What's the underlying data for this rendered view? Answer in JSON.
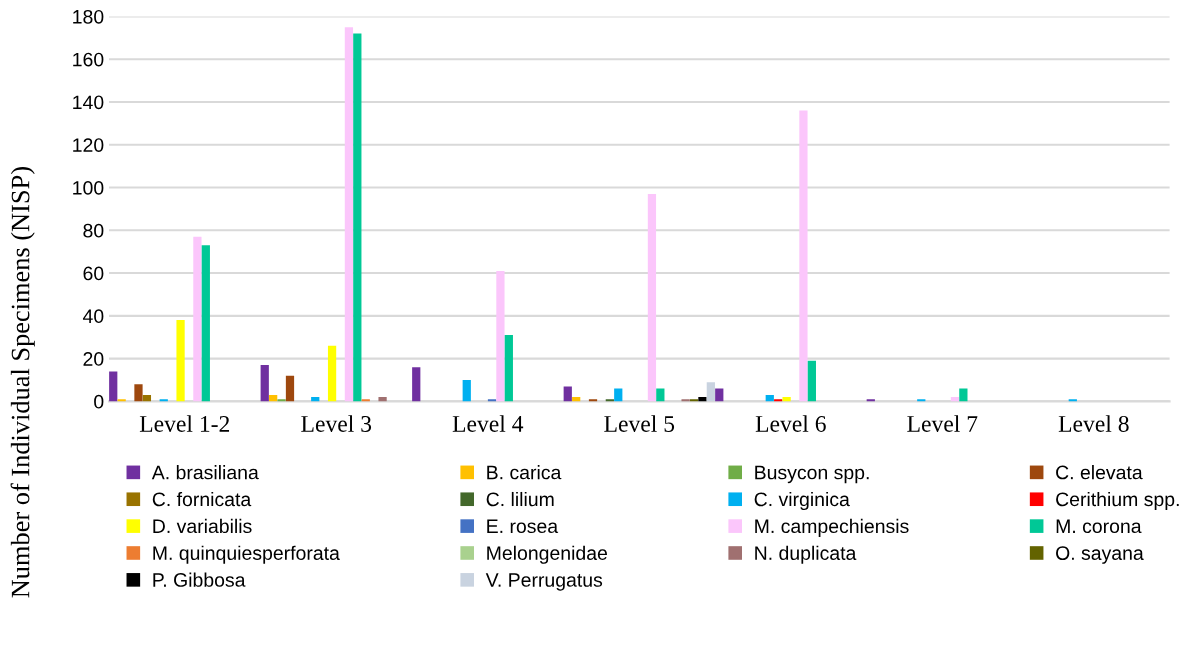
{
  "chart_data": {
    "type": "bar",
    "ylabel": "Number of Individual Specimens (NISP)",
    "categories": [
      "Level 1-2",
      "Level 3",
      "Level 4",
      "Level 5",
      "Level 6",
      "Level 7",
      "Level 8"
    ],
    "ylim": [
      0,
      180
    ],
    "yticks": [
      0,
      20,
      40,
      60,
      80,
      100,
      120,
      140,
      160,
      180
    ],
    "grid": "y",
    "legend": "bottom",
    "series": [
      {
        "name": "A. brasiliana",
        "color": "#7030a0",
        "values": [
          14,
          17,
          16,
          7,
          6,
          1,
          0
        ]
      },
      {
        "name": "B. carica",
        "color": "#ffc000",
        "values": [
          1,
          3,
          0,
          2,
          0,
          0,
          0
        ]
      },
      {
        "name": "Busycon spp.",
        "color": "#70ad47",
        "values": [
          0,
          1,
          0,
          0,
          0,
          0,
          0
        ]
      },
      {
        "name": "C. elevata",
        "color": "#9e480e",
        "values": [
          8,
          12,
          0,
          1,
          0,
          0,
          0
        ]
      },
      {
        "name": "C. fornicata",
        "color": "#997300",
        "values": [
          3,
          0,
          0,
          0,
          0,
          0,
          0
        ]
      },
      {
        "name": "C. lilium",
        "color": "#43682b",
        "values": [
          0,
          0,
          0,
          1,
          0,
          0,
          0
        ]
      },
      {
        "name": "C. virginica",
        "color": "#00b0f0",
        "values": [
          1,
          2,
          10,
          6,
          3,
          1,
          1
        ]
      },
      {
        "name": "Cerithium spp.",
        "color": "#ff0000",
        "values": [
          0,
          0,
          0,
          0,
          1,
          0,
          0
        ]
      },
      {
        "name": "D. variabilis",
        "color": "#ffff00",
        "values": [
          38,
          26,
          0,
          0,
          2,
          0,
          0
        ]
      },
      {
        "name": "E. rosea",
        "color": "#4472c4",
        "values": [
          0,
          0,
          1,
          0,
          0,
          0,
          0
        ]
      },
      {
        "name": "M. campechiensis",
        "color": "#fbc6fb",
        "values": [
          77,
          175,
          61,
          97,
          136,
          2,
          0
        ]
      },
      {
        "name": "M. corona",
        "color": "#00c896",
        "values": [
          73,
          172,
          31,
          6,
          19,
          6,
          0
        ]
      },
      {
        "name": "M. quinquiesperforata",
        "color": "#ed7d31",
        "values": [
          0,
          1,
          0,
          0,
          0,
          0,
          0
        ]
      },
      {
        "name": "Melongenidae",
        "color": "#a9d18e",
        "values": [
          0,
          0,
          0,
          0,
          0,
          0,
          0
        ]
      },
      {
        "name": "N. duplicata",
        "color": "#a07070",
        "values": [
          0,
          2,
          0,
          1,
          0,
          0,
          0
        ]
      },
      {
        "name": "O. sayana",
        "color": "#636300",
        "values": [
          0,
          0,
          0,
          1,
          0,
          0,
          0
        ]
      },
      {
        "name": "P. Gibbosa",
        "color": "#000000",
        "values": [
          0,
          0,
          0,
          2,
          0,
          0,
          0
        ]
      },
      {
        "name": "V. Perrugatus",
        "color": "#c9d3e0",
        "values": [
          0,
          0,
          0,
          9,
          0,
          0,
          0
        ]
      }
    ]
  }
}
